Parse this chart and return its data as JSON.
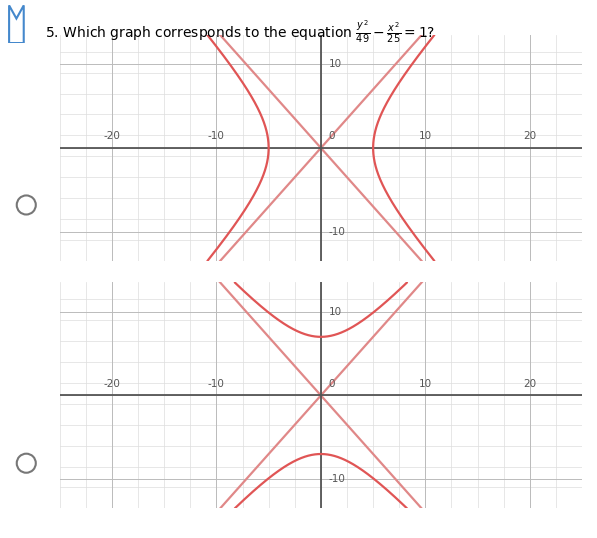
{
  "title_text": "5. Which graph corresponds to the equation ",
  "title_eq": "$\\frac{y^2}{49} - \\frac{x^2}{25} = 1$?",
  "graph1": {
    "type": "horizontal_hyperbola",
    "a2": 25,
    "b2": 49,
    "xlim": [
      -25,
      25
    ],
    "ylim": [
      -13.5,
      13.5
    ],
    "xticks": [
      -20,
      -10,
      10,
      20
    ],
    "yticks": [
      -10,
      10
    ],
    "minor_x_step": 2.5,
    "minor_y_step": 2.5,
    "curve_color": "#e05555",
    "asym_color": "#e08888"
  },
  "graph2": {
    "type": "vertical_hyperbola",
    "a2": 49,
    "b2": 25,
    "xlim": [
      -25,
      25
    ],
    "ylim": [
      -13.5,
      13.5
    ],
    "xticks": [
      -20,
      -10,
      10,
      20
    ],
    "yticks": [
      -10,
      10
    ],
    "minor_x_step": 2.5,
    "minor_y_step": 2.5,
    "curve_color": "#e05555",
    "asym_color": "#e08888"
  },
  "radio_color": "#777777",
  "grid_major_color": "#bbbbbb",
  "grid_minor_color": "#dddddd",
  "axis_color": "#555555",
  "bg_color": "#ffffff",
  "tick_fontsize": 7.5,
  "curve_linewidth": 1.6,
  "axis_linewidth": 1.3
}
